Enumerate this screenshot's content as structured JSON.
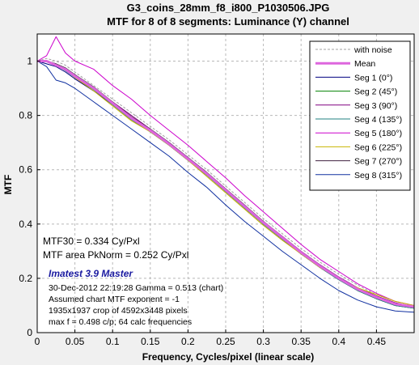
{
  "chart_data": {
    "type": "line",
    "title": "G3_coins_28mm_f8_i800_P1030506.JPG",
    "subtitle": "MTF for 8 of 8 segments:  Luminance (Y) channel",
    "xlabel": "Frequency, Cycles/pixel (linear scale)",
    "ylabel": "MTF",
    "xlim": [
      0,
      0.5
    ],
    "ylim": [
      0,
      1.1
    ],
    "xticks": [
      "0",
      "0.05",
      "0.1",
      "0.15",
      "0.2",
      "0.25",
      "0.3",
      "0.35",
      "0.4",
      "0.45"
    ],
    "yticks": [
      "0",
      "0.2",
      "0.4",
      "0.6",
      "0.8",
      "1"
    ],
    "grid": true,
    "legend_position": "top-right",
    "legend_with_noise": "with noise",
    "x": [
      0.0,
      0.0125,
      0.025,
      0.0375,
      0.05,
      0.075,
      0.1,
      0.125,
      0.15,
      0.175,
      0.2,
      0.225,
      0.25,
      0.275,
      0.3,
      0.325,
      0.35,
      0.375,
      0.4,
      0.425,
      0.45,
      0.475,
      0.5
    ],
    "series": [
      {
        "name": "with noise",
        "color": "#a0a0a0",
        "values": [
          1.0,
          1.01,
          1.0,
          0.985,
          0.96,
          0.91,
          0.86,
          0.81,
          0.76,
          0.71,
          0.655,
          0.6,
          0.54,
          0.48,
          0.42,
          0.365,
          0.31,
          0.26,
          0.215,
          0.175,
          0.14,
          0.115,
          0.1
        ]
      },
      {
        "name": "Mean",
        "color": "#dd66dd",
        "values": [
          1.0,
          1.0,
          0.985,
          0.97,
          0.945,
          0.9,
          0.845,
          0.79,
          0.745,
          0.695,
          0.64,
          0.585,
          0.525,
          0.465,
          0.405,
          0.35,
          0.295,
          0.245,
          0.2,
          0.16,
          0.13,
          0.105,
          0.095
        ]
      },
      {
        "name": "Seg 1 (0°)",
        "color": "#000080",
        "values": [
          1.0,
          0.99,
          0.98,
          0.96,
          0.935,
          0.89,
          0.84,
          0.785,
          0.74,
          0.69,
          0.635,
          0.58,
          0.52,
          0.46,
          0.4,
          0.345,
          0.29,
          0.24,
          0.195,
          0.155,
          0.125,
          0.1,
          0.09
        ]
      },
      {
        "name": "Seg 2 (45°)",
        "color": "#008000",
        "values": [
          1.0,
          1.0,
          0.99,
          0.975,
          0.95,
          0.9,
          0.84,
          0.785,
          0.74,
          0.69,
          0.635,
          0.58,
          0.52,
          0.46,
          0.4,
          0.345,
          0.29,
          0.24,
          0.195,
          0.155,
          0.125,
          0.1,
          0.09
        ]
      },
      {
        "name": "Seg 3 (90°)",
        "color": "#800080",
        "values": [
          1.0,
          1.0,
          0.99,
          0.97,
          0.95,
          0.9,
          0.85,
          0.8,
          0.75,
          0.7,
          0.645,
          0.59,
          0.53,
          0.47,
          0.41,
          0.355,
          0.3,
          0.25,
          0.205,
          0.165,
          0.135,
          0.11,
          0.095
        ]
      },
      {
        "name": "Seg 4 (135°)",
        "color": "#208080",
        "values": [
          1.0,
          1.0,
          0.985,
          0.965,
          0.94,
          0.895,
          0.84,
          0.785,
          0.74,
          0.69,
          0.635,
          0.58,
          0.52,
          0.46,
          0.4,
          0.345,
          0.29,
          0.24,
          0.195,
          0.155,
          0.125,
          0.1,
          0.09
        ]
      },
      {
        "name": "Seg 5 (180°)",
        "color": "#cc00cc",
        "values": [
          1.0,
          1.02,
          1.09,
          1.03,
          1.0,
          0.97,
          0.91,
          0.86,
          0.8,
          0.745,
          0.69,
          0.63,
          0.57,
          0.505,
          0.445,
          0.385,
          0.325,
          0.27,
          0.225,
          0.18,
          0.145,
          0.115,
          0.1
        ]
      },
      {
        "name": "Seg 6 (225°)",
        "color": "#c8b400",
        "values": [
          1.0,
          1.0,
          0.985,
          0.97,
          0.94,
          0.89,
          0.835,
          0.78,
          0.74,
          0.69,
          0.635,
          0.575,
          0.515,
          0.455,
          0.395,
          0.34,
          0.29,
          0.24,
          0.2,
          0.165,
          0.14,
          0.115,
          0.1
        ]
      },
      {
        "name": "Seg 7 (270°)",
        "color": "#402040",
        "values": [
          1.0,
          1.0,
          0.99,
          0.975,
          0.95,
          0.905,
          0.85,
          0.795,
          0.75,
          0.7,
          0.645,
          0.59,
          0.53,
          0.47,
          0.41,
          0.35,
          0.295,
          0.245,
          0.2,
          0.16,
          0.13,
          0.105,
          0.095
        ]
      },
      {
        "name": "Seg 8 (315°)",
        "color": "#1030a0",
        "values": [
          1.0,
          0.98,
          0.93,
          0.92,
          0.9,
          0.85,
          0.8,
          0.75,
          0.7,
          0.65,
          0.59,
          0.535,
          0.47,
          0.41,
          0.355,
          0.3,
          0.25,
          0.2,
          0.155,
          0.12,
          0.095,
          0.08,
          0.075
        ]
      }
    ],
    "annotations": {
      "mtf30": "MTF30 = 0.334 Cy/Pxl",
      "mtf_area": "MTF area PkNorm = 0.252 Cy/Pxl",
      "brand": "Imatest 3.9 Master",
      "brand_color": "#1a1aa0",
      "date": "30-Dec-2012 22:19:28    Gamma = 0.513 (chart)",
      "exponent": "Assumed chart MTF exponent = -1",
      "crop": "1935x1937 crop of 4592x3448 pixels",
      "maxf": "max f = 0.498 c/p;  64 calc frequencies"
    }
  }
}
